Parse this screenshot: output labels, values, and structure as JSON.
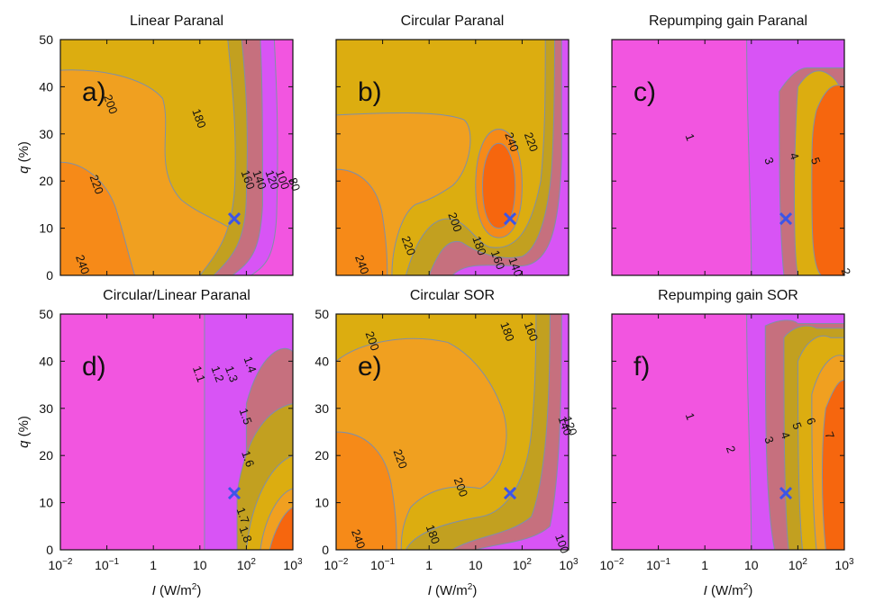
{
  "chart_data": [
    {
      "type": "heatmap",
      "panel_label": "a)",
      "title": "Linear Paranal",
      "x_scale": "log",
      "xlim": [
        0.01,
        1000
      ],
      "ylim": [
        0,
        50
      ],
      "ylabel_italic": "q",
      "ylabel_unit": " (%)",
      "xlabel_italic": "",
      "xlabel_unit": "",
      "show_x_ticklabels": false,
      "show_y_ticklabels": true,
      "marker": {
        "x": 55,
        "y": 12
      },
      "contour_labels": [
        {
          "text": "200",
          "x": 0.1,
          "y": 36
        },
        {
          "text": "180",
          "x": 8,
          "y": 33
        },
        {
          "text": "220",
          "x": 0.05,
          "y": 19
        },
        {
          "text": "160",
          "x": 90,
          "y": 20
        },
        {
          "text": "140",
          "x": 160,
          "y": 20
        },
        {
          "text": "120",
          "x": 300,
          "y": 20
        },
        {
          "text": "100",
          "x": 500,
          "y": 20
        },
        {
          "text": "80",
          "x": 900,
          "y": 19
        },
        {
          "text": "240",
          "x": 0.025,
          "y": 2
        }
      ]
    },
    {
      "type": "heatmap",
      "panel_label": "b)",
      "title": "Circular Paranal",
      "x_scale": "log",
      "xlim": [
        0.01,
        1000
      ],
      "ylim": [
        0,
        50
      ],
      "ylabel_italic": "",
      "ylabel_unit": "",
      "xlabel_italic": "",
      "xlabel_unit": "",
      "show_x_ticklabels": false,
      "show_y_ticklabels": false,
      "marker": {
        "x": 55,
        "y": 12
      },
      "contour_labels": [
        {
          "text": "240",
          "x": 50,
          "y": 28
        },
        {
          "text": "220",
          "x": 130,
          "y": 28
        },
        {
          "text": "200",
          "x": 3,
          "y": 11
        },
        {
          "text": "180",
          "x": 10,
          "y": 6
        },
        {
          "text": "160",
          "x": 25,
          "y": 3
        },
        {
          "text": "140",
          "x": 60,
          "y": 1.5
        },
        {
          "text": "220",
          "x": 0.3,
          "y": 6
        },
        {
          "text": "240",
          "x": 0.03,
          "y": 2
        }
      ]
    },
    {
      "type": "heatmap",
      "panel_label": "c)",
      "title": "Repumping gain Paranal",
      "x_scale": "log",
      "xlim": [
        0.01,
        1000
      ],
      "ylim": [
        0,
        50
      ],
      "ylabel_italic": "",
      "ylabel_unit": "",
      "xlabel_italic": "",
      "xlabel_unit": "",
      "show_x_ticklabels": false,
      "show_y_ticklabels": false,
      "marker": {
        "x": 55,
        "y": 12
      },
      "contour_labels": [
        {
          "text": "1",
          "x": 0.4,
          "y": 29
        },
        {
          "text": "3",
          "x": 20,
          "y": 24
        },
        {
          "text": "4",
          "x": 70,
          "y": 25
        },
        {
          "text": "5",
          "x": 200,
          "y": 24
        },
        {
          "text": "2",
          "x": 900,
          "y": 0.5
        }
      ]
    },
    {
      "type": "heatmap",
      "panel_label": "d)",
      "title": "Circular/Linear Paranal",
      "x_scale": "log",
      "xlim": [
        0.01,
        1000
      ],
      "ylim": [
        0,
        50
      ],
      "ylabel_italic": "q",
      "ylabel_unit": " (%)",
      "xlabel_italic": "I",
      "xlabel_unit": "  (W/m",
      "show_x_ticklabels": true,
      "show_y_ticklabels": true,
      "marker": {
        "x": 55,
        "y": 12
      },
      "contour_labels": [
        {
          "text": "1.1",
          "x": 8,
          "y": 37
        },
        {
          "text": "1.2",
          "x": 20,
          "y": 37
        },
        {
          "text": "1.3",
          "x": 40,
          "y": 37
        },
        {
          "text": "1.4",
          "x": 100,
          "y": 39
        },
        {
          "text": "1.5",
          "x": 80,
          "y": 28
        },
        {
          "text": "1.6",
          "x": 90,
          "y": 19
        },
        {
          "text": "1.7",
          "x": 70,
          "y": 7
        },
        {
          "text": "1.8",
          "x": 80,
          "y": 3
        }
      ]
    },
    {
      "type": "heatmap",
      "panel_label": "e)",
      "title": "Circular SOR",
      "x_scale": "log",
      "xlim": [
        0.01,
        1000
      ],
      "ylim": [
        0,
        50
      ],
      "ylabel_italic": "",
      "ylabel_unit": "",
      "xlabel_italic": "I",
      "xlabel_unit": " (W/m",
      "show_x_ticklabels": true,
      "show_y_ticklabels": true,
      "marker": {
        "x": 55,
        "y": 12
      },
      "contour_labels": [
        {
          "text": "200",
          "x": 0.05,
          "y": 44
        },
        {
          "text": "180",
          "x": 40,
          "y": 46
        },
        {
          "text": "160",
          "x": 130,
          "y": 46
        },
        {
          "text": "140",
          "x": 700,
          "y": 26
        },
        {
          "text": "120",
          "x": 900,
          "y": 26
        },
        {
          "text": "220",
          "x": 0.2,
          "y": 19
        },
        {
          "text": "200",
          "x": 4,
          "y": 13
        },
        {
          "text": "180",
          "x": 1,
          "y": 3
        },
        {
          "text": "240",
          "x": 0.025,
          "y": 2
        },
        {
          "text": "100",
          "x": 600,
          "y": 1
        }
      ]
    },
    {
      "type": "heatmap",
      "panel_label": "f)",
      "title": "Repumping gain SOR",
      "x_scale": "log",
      "xlim": [
        0.01,
        1000
      ],
      "ylim": [
        0,
        50
      ],
      "ylabel_italic": "",
      "ylabel_unit": "",
      "xlabel_italic": "I",
      "xlabel_unit": " (W/m",
      "show_x_ticklabels": true,
      "show_y_ticklabels": false,
      "marker": {
        "x": 55,
        "y": 12
      },
      "contour_labels": [
        {
          "text": "1",
          "x": 0.4,
          "y": 28
        },
        {
          "text": "2",
          "x": 3,
          "y": 21
        },
        {
          "text": "3",
          "x": 20,
          "y": 23
        },
        {
          "text": "4",
          "x": 45,
          "y": 24
        },
        {
          "text": "5",
          "x": 80,
          "y": 26
        },
        {
          "text": "6",
          "x": 160,
          "y": 27
        },
        {
          "text": "7",
          "x": 400,
          "y": 24
        }
      ]
    }
  ],
  "axes": {
    "x_tick_labels": [
      {
        "value": 0.01,
        "base": "10",
        "exp": "−2"
      },
      {
        "value": 0.1,
        "base": "10",
        "exp": "−1"
      },
      {
        "value": 1,
        "base": "1",
        "exp": ""
      },
      {
        "value": 10,
        "base": "10",
        "exp": ""
      },
      {
        "value": 100,
        "base": "10",
        "exp": "2"
      },
      {
        "value": 1000,
        "base": "10",
        "exp": "3"
      }
    ],
    "y_ticks": [
      "0",
      "10",
      "20",
      "30",
      "40",
      "50"
    ],
    "xlabel_exp": "2",
    "xlabel_close": ")"
  },
  "colors": {
    "magenta": "#f255e0",
    "violet": "#d854f5",
    "mauve": "#c6707e",
    "olive": "#c2a020",
    "gold": "#dcad10",
    "orange": "#f0a020",
    "darkorange": "#f68a18",
    "red": "#f6660e",
    "contour": "#7f8fa8",
    "marker": "#3b55e8"
  }
}
